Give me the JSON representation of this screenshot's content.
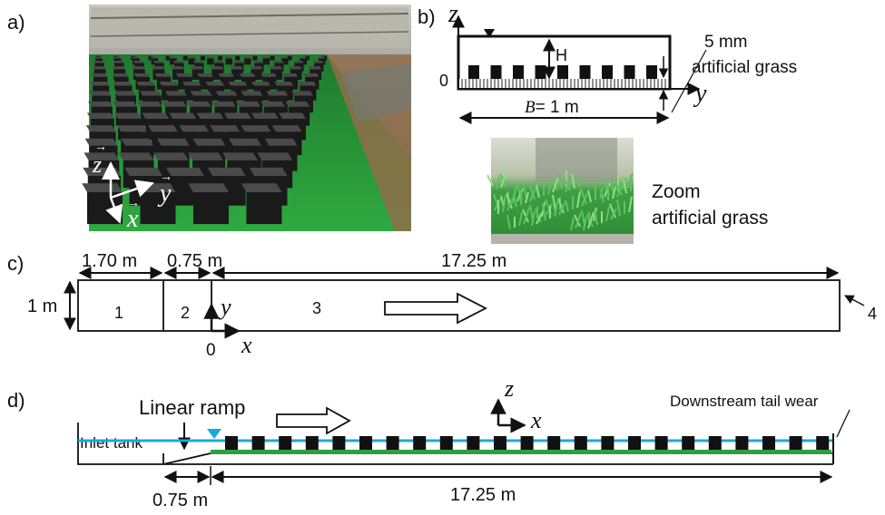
{
  "panels": {
    "a": {
      "label": "a)",
      "axes": {
        "z": "z",
        "y": "y",
        "x": "x"
      }
    },
    "b": {
      "label": "b)",
      "z_axis": "z",
      "y_axis": "y",
      "origin": "0",
      "height_label": "H",
      "thickness_label": "5 mm",
      "grass_label": "artificial grass",
      "width_var": "B",
      "width_value": "= 1 m",
      "zoom_line1": "Zoom",
      "zoom_line2": "artificial grass"
    },
    "c": {
      "label": "c)",
      "dim_1": "1.70 m",
      "dim_2": "0.75 m",
      "dim_3": "17.25 m",
      "width_dim": "1 m",
      "zone_1": "1",
      "zone_2": "2",
      "zone_3": "3",
      "zone_4": "4",
      "y_axis": "y",
      "x_axis": "x",
      "origin": "0"
    },
    "d": {
      "label": "d)",
      "ramp_label": "Linear ramp",
      "tank_label": "Inlet tank",
      "weir_label": "Downstream tail wear",
      "z_axis": "z",
      "x_axis": "x",
      "dim_ramp": "0.75 m",
      "dim_main": "17.25 m"
    }
  },
  "colors": {
    "water": "#1aa8e0",
    "grass": "#2e9e3e",
    "blocks": "#111111"
  }
}
